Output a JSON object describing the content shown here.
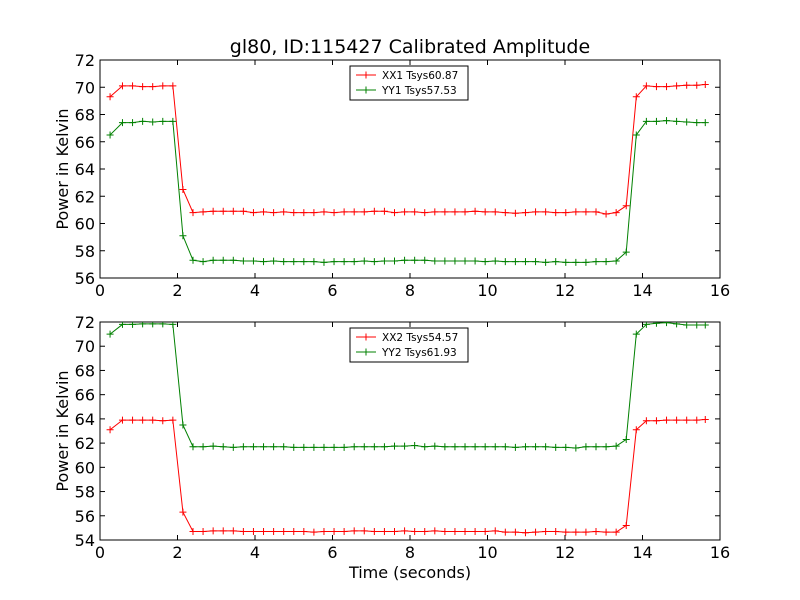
{
  "figure": {
    "title": "gl80, ID:115427 Calibrated Amplitude"
  },
  "colors": {
    "red": "#ff0000",
    "green": "#008000"
  },
  "chart_data": [
    {
      "type": "line",
      "title": "gl80, ID:115427 Calibrated Amplitude",
      "xlabel": "",
      "ylabel": "Power in Kelvin",
      "xlim": [
        0,
        16
      ],
      "ylim": [
        56,
        72
      ],
      "xticks": [
        0,
        2,
        4,
        6,
        8,
        10,
        12,
        14,
        16
      ],
      "yticks": [
        56,
        58,
        60,
        62,
        64,
        66,
        68,
        70,
        72
      ],
      "grid": false,
      "legend_position": "top-center",
      "x": [
        0.26,
        0.58,
        0.84,
        1.1,
        1.36,
        1.62,
        1.88,
        2.14,
        2.4,
        2.66,
        2.92,
        3.18,
        3.44,
        3.7,
        3.96,
        4.22,
        4.48,
        4.74,
        5.0,
        5.26,
        5.52,
        5.78,
        6.04,
        6.3,
        6.56,
        6.82,
        7.08,
        7.34,
        7.6,
        7.86,
        8.12,
        8.38,
        8.64,
        8.9,
        9.16,
        9.42,
        9.68,
        9.94,
        10.2,
        10.46,
        10.72,
        10.98,
        11.24,
        11.5,
        11.76,
        12.02,
        12.28,
        12.54,
        12.8,
        13.06,
        13.32,
        13.58,
        13.84,
        14.1,
        14.36,
        14.62,
        14.88,
        15.14,
        15.4,
        15.62
      ],
      "series": [
        {
          "name": "XX1 Tsys60.87",
          "color": "#ff0000",
          "values": [
            69.3,
            70.1,
            70.1,
            70.05,
            70.05,
            70.1,
            70.1,
            62.5,
            60.8,
            60.85,
            60.9,
            60.9,
            60.9,
            60.9,
            60.8,
            60.85,
            60.8,
            60.85,
            60.8,
            60.8,
            60.8,
            60.85,
            60.8,
            60.85,
            60.85,
            60.85,
            60.9,
            60.9,
            60.8,
            60.85,
            60.85,
            60.8,
            60.85,
            60.85,
            60.85,
            60.85,
            60.9,
            60.85,
            60.85,
            60.8,
            60.75,
            60.8,
            60.85,
            60.85,
            60.8,
            60.8,
            60.85,
            60.85,
            60.85,
            60.7,
            60.8,
            61.3,
            69.3,
            70.1,
            70.05,
            70.05,
            70.1,
            70.15,
            70.15,
            70.2
          ]
        },
        {
          "name": "YY1 Tsys57.53",
          "color": "#008000",
          "values": [
            66.5,
            67.4,
            67.4,
            67.5,
            67.45,
            67.5,
            67.5,
            59.1,
            57.3,
            57.2,
            57.3,
            57.3,
            57.3,
            57.25,
            57.25,
            57.2,
            57.25,
            57.2,
            57.2,
            57.2,
            57.2,
            57.15,
            57.2,
            57.2,
            57.2,
            57.25,
            57.2,
            57.25,
            57.25,
            57.3,
            57.3,
            57.3,
            57.25,
            57.25,
            57.25,
            57.25,
            57.25,
            57.2,
            57.25,
            57.2,
            57.2,
            57.2,
            57.2,
            57.15,
            57.2,
            57.15,
            57.15,
            57.15,
            57.2,
            57.2,
            57.25,
            57.9,
            66.5,
            67.5,
            67.5,
            67.55,
            67.5,
            67.45,
            67.4,
            67.4
          ]
        }
      ]
    },
    {
      "type": "line",
      "title": "",
      "xlabel": "Time (seconds)",
      "ylabel": "Power in Kelvin",
      "xlim": [
        0,
        16
      ],
      "ylim": [
        54,
        72
      ],
      "xticks": [
        0,
        2,
        4,
        6,
        8,
        10,
        12,
        14,
        16
      ],
      "yticks": [
        54,
        56,
        58,
        60,
        62,
        64,
        66,
        68,
        70,
        72
      ],
      "grid": false,
      "legend_position": "top-center",
      "x": [
        0.26,
        0.58,
        0.84,
        1.1,
        1.36,
        1.62,
        1.88,
        2.14,
        2.4,
        2.66,
        2.92,
        3.18,
        3.44,
        3.7,
        3.96,
        4.22,
        4.48,
        4.74,
        5.0,
        5.26,
        5.52,
        5.78,
        6.04,
        6.3,
        6.56,
        6.82,
        7.08,
        7.34,
        7.6,
        7.86,
        8.12,
        8.38,
        8.64,
        8.9,
        9.16,
        9.42,
        9.68,
        9.94,
        10.2,
        10.46,
        10.72,
        10.98,
        11.24,
        11.5,
        11.76,
        12.02,
        12.28,
        12.54,
        12.8,
        13.06,
        13.32,
        13.58,
        13.84,
        14.1,
        14.36,
        14.62,
        14.88,
        15.14,
        15.4,
        15.62
      ],
      "series": [
        {
          "name": "XX2 Tsys54.57",
          "color": "#ff0000",
          "values": [
            63.1,
            63.9,
            63.9,
            63.9,
            63.9,
            63.85,
            63.9,
            56.3,
            54.7,
            54.7,
            54.75,
            54.75,
            54.75,
            54.7,
            54.7,
            54.7,
            54.7,
            54.7,
            54.7,
            54.7,
            54.65,
            54.7,
            54.7,
            54.7,
            54.75,
            54.75,
            54.7,
            54.7,
            54.7,
            54.75,
            54.7,
            54.7,
            54.75,
            54.7,
            54.7,
            54.7,
            54.7,
            54.7,
            54.75,
            54.65,
            54.65,
            54.6,
            54.65,
            54.7,
            54.7,
            54.65,
            54.65,
            54.65,
            54.7,
            54.65,
            54.65,
            55.2,
            63.1,
            63.85,
            63.85,
            63.9,
            63.9,
            63.9,
            63.9,
            63.95
          ]
        },
        {
          "name": "YY2 Tsys61.93",
          "color": "#008000",
          "values": [
            71.0,
            71.8,
            71.8,
            71.85,
            71.85,
            71.85,
            71.8,
            63.5,
            61.7,
            61.7,
            61.75,
            61.7,
            61.65,
            61.7,
            61.7,
            61.7,
            61.7,
            61.7,
            61.65,
            61.65,
            61.65,
            61.65,
            61.65,
            61.65,
            61.7,
            61.7,
            61.7,
            61.7,
            61.75,
            61.75,
            61.8,
            61.7,
            61.75,
            61.7,
            61.7,
            61.7,
            61.7,
            61.7,
            61.7,
            61.7,
            61.65,
            61.7,
            61.7,
            61.7,
            61.65,
            61.65,
            61.6,
            61.7,
            61.7,
            61.7,
            61.75,
            62.3,
            71.0,
            71.8,
            71.9,
            71.95,
            71.85,
            71.75,
            71.75,
            71.75
          ]
        }
      ]
    }
  ]
}
